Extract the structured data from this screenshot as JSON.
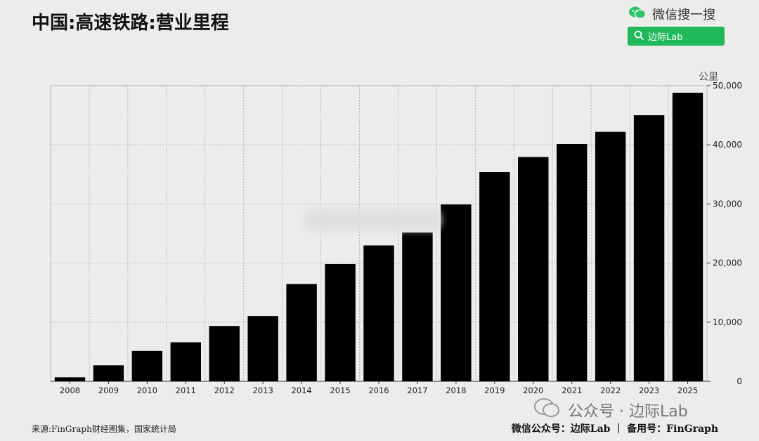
{
  "header": {
    "title": "中国:高速铁路:营业里程",
    "wechat_label": "微信搜一搜",
    "search_label": "边际Lab"
  },
  "footer": {
    "source": "来源:FinGraph财经图集，国家统计局",
    "right": "微信公众号：边际Lab ｜ 备用号：FinGraph",
    "watermark": "公众号 · 边际Lab"
  },
  "colors": {
    "bar": "#000000",
    "accent": "#1fb85a",
    "background": "#ececea"
  },
  "icons": [
    "wechat-icon",
    "search-icon"
  ],
  "chart_data": {
    "type": "bar",
    "title": "中国:高速铁路:营业里程",
    "ylabel": "公里",
    "categories": [
      "2008",
      "2009",
      "2010",
      "2011",
      "2012",
      "2013",
      "2014",
      "2015",
      "2016",
      "2017",
      "2018",
      "2019",
      "2020",
      "2021",
      "2022",
      "2023",
      "2025"
    ],
    "values": [
      672,
      2699,
      5133,
      6601,
      9356,
      11028,
      16456,
      19838,
      22980,
      25164,
      29904,
      35388,
      37929,
      40139,
      42193,
      45000,
      48800
    ],
    "ylim": [
      0,
      50000
    ],
    "yticks": [
      0,
      10000,
      20000,
      30000,
      40000,
      50000
    ],
    "ytick_labels": [
      "0",
      "10,000",
      "20,000",
      "30,000",
      "40,000",
      "50,000"
    ],
    "y_axis_side": "right",
    "grid": true
  }
}
